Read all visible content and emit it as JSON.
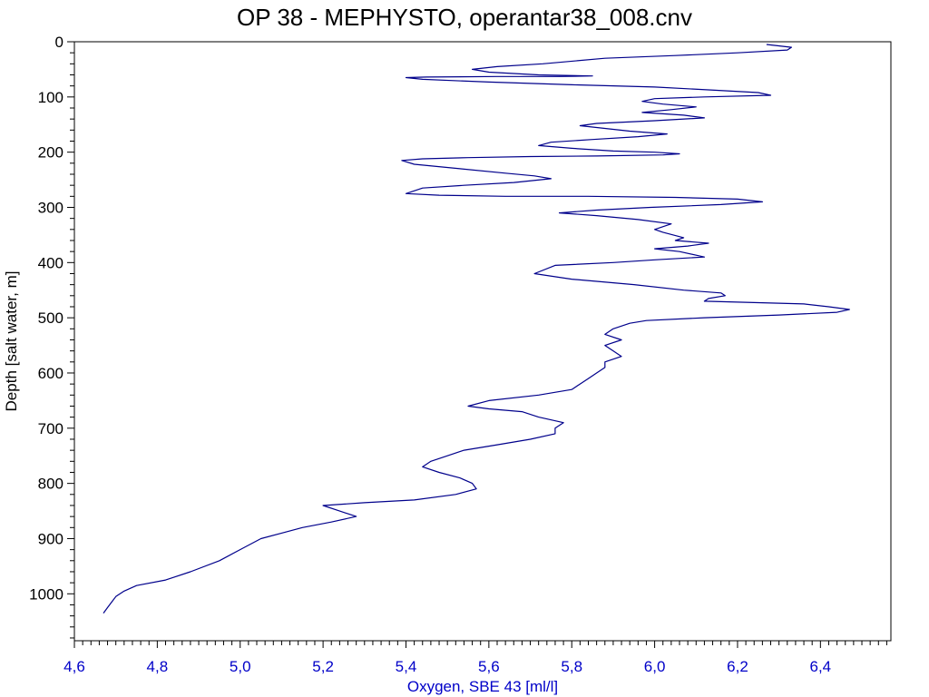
{
  "chart_data": {
    "type": "line",
    "title": "OP 38 - MEPHYSTO, operantar38_008.cnv",
    "xlabel": "Oxygen, SBE 43 [ml/l]",
    "ylabel": "Depth [salt water, m]",
    "xlim": [
      4.6,
      6.57
    ],
    "ylim": [
      0,
      1085
    ],
    "y_inverted": true,
    "x_tick_labels": [
      "4,6",
      "4,8",
      "5,0",
      "5,2",
      "5,4",
      "5,6",
      "5,8",
      "6,0",
      "6,2",
      "6,4"
    ],
    "x_tick_values": [
      4.6,
      4.8,
      5.0,
      5.2,
      5.4,
      5.6,
      5.8,
      6.0,
      6.2,
      6.4
    ],
    "y_tick_labels": [
      "0",
      "100",
      "200",
      "300",
      "400",
      "500",
      "600",
      "700",
      "800",
      "900",
      "1000"
    ],
    "y_tick_values": [
      0,
      100,
      200,
      300,
      400,
      500,
      600,
      700,
      800,
      900,
      1000
    ],
    "line_color": "#00008b",
    "axis_color": "#000000",
    "x_axis_text_color": "#0000c8",
    "series": [
      {
        "x": [
          6.27,
          6.33,
          6.32,
          6.2,
          6.05,
          5.88,
          5.73,
          5.62,
          5.56,
          5.6,
          5.72,
          5.85,
          5.77,
          5.62,
          5.45,
          5.4,
          5.44,
          5.6,
          5.8,
          6.0,
          6.15,
          6.25,
          6.28,
          6.12,
          6.0,
          5.97,
          6.02,
          6.1,
          6.04,
          5.97,
          6.07,
          6.12,
          6.0,
          5.86,
          5.82,
          5.88,
          5.94,
          6.03,
          5.96,
          5.85,
          5.75,
          5.72,
          5.8,
          5.9,
          6.0,
          6.06,
          6.02,
          5.86,
          5.7,
          5.55,
          5.44,
          5.39,
          5.42,
          5.53,
          5.64,
          5.71,
          5.75,
          5.66,
          5.54,
          5.44,
          5.4,
          5.48,
          5.64,
          5.84,
          6.05,
          6.2,
          6.26,
          6.16,
          5.99,
          5.86,
          5.77,
          5.86,
          5.96,
          6.04,
          6.0,
          6.02,
          6.07,
          6.05,
          6.13,
          6.08,
          6.0,
          6.06,
          6.12,
          6.0,
          5.9,
          5.76,
          5.71,
          5.8,
          5.95,
          6.07,
          6.16,
          6.17,
          6.13,
          6.12,
          6.22,
          6.36,
          6.42,
          6.47,
          6.44,
          6.3,
          6.12,
          5.98,
          5.94,
          5.9,
          5.88,
          5.92,
          5.88,
          5.9,
          5.92,
          5.88,
          5.88,
          5.86,
          5.84,
          5.82,
          5.8,
          5.72,
          5.6,
          5.55,
          5.6,
          5.68,
          5.72,
          5.78,
          5.76,
          5.76,
          5.7,
          5.62,
          5.54,
          5.5,
          5.46,
          5.44,
          5.48,
          5.53,
          5.56,
          5.57,
          5.52,
          5.42,
          5.3,
          5.2,
          5.24,
          5.28,
          5.22,
          5.15,
          5.1,
          5.05,
          5.0,
          4.95,
          4.88,
          4.82,
          4.75,
          4.72,
          4.7,
          4.69,
          4.68,
          4.67
        ],
        "y": [
          5,
          10,
          15,
          20,
          25,
          30,
          40,
          45,
          50,
          55,
          60,
          62,
          63,
          63,
          64,
          65,
          68,
          73,
          78,
          82,
          88,
          92,
          97,
          100,
          103,
          108,
          113,
          118,
          123,
          128,
          133,
          138,
          143,
          148,
          152,
          157,
          162,
          167,
          172,
          177,
          182,
          188,
          193,
          198,
          200,
          203,
          205,
          207,
          208,
          210,
          212,
          215,
          222,
          230,
          238,
          243,
          248,
          255,
          260,
          265,
          275,
          278,
          280,
          280,
          282,
          285,
          290,
          295,
          300,
          305,
          310,
          315,
          322,
          330,
          340,
          345,
          355,
          360,
          365,
          370,
          375,
          380,
          390,
          395,
          400,
          405,
          420,
          430,
          440,
          450,
          455,
          460,
          465,
          470,
          472,
          475,
          480,
          485,
          490,
          495,
          500,
          505,
          510,
          520,
          530,
          540,
          550,
          560,
          570,
          580,
          590,
          600,
          610,
          620,
          630,
          640,
          650,
          660,
          665,
          670,
          680,
          690,
          700,
          710,
          720,
          730,
          740,
          750,
          760,
          770,
          780,
          790,
          800,
          810,
          820,
          830,
          835,
          840,
          850,
          860,
          870,
          880,
          890,
          900,
          920,
          940,
          960,
          975,
          985,
          995,
          1005,
          1015,
          1025,
          1035
        ]
      }
    ]
  }
}
